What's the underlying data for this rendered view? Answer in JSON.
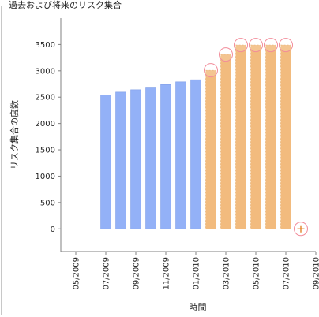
{
  "panel": {
    "title": "過去および将来のリスク集合"
  },
  "colors": {
    "past_bar": "#93b1f7",
    "future_bar": "#f2bb7e",
    "circle": "#f28c9a",
    "axis": "#808080",
    "plus": "#e07a18"
  },
  "chart_data": {
    "type": "bar",
    "title": "",
    "xlabel": "時間",
    "ylabel": "リスク集合の度数",
    "ylim": [
      -430,
      4000
    ],
    "yticks": [
      0,
      500,
      1000,
      1500,
      2000,
      2500,
      3000,
      3500
    ],
    "xlim": [
      "2009-04",
      "2010-09"
    ],
    "xticks": [
      "05/2009",
      "07/2009",
      "09/2009",
      "11/2009",
      "01/2010",
      "03/2010",
      "05/2010",
      "07/2010",
      "09/2010"
    ],
    "series": [
      {
        "kind": "past",
        "months": [
          "2009-07",
          "2009-08",
          "2009-09",
          "2009-10",
          "2009-11",
          "2009-12",
          "2010-01"
        ],
        "values": [
          2540,
          2595,
          2640,
          2690,
          2740,
          2790,
          2830
        ]
      },
      {
        "kind": "future",
        "months": [
          "2010-02",
          "2010-03",
          "2010-04",
          "2010-05",
          "2010-06",
          "2010-07"
        ],
        "values": [
          3010,
          3310,
          3490,
          3490,
          3490,
          3490
        ]
      }
    ],
    "markers": {
      "circled_months": [
        "2010-02",
        "2010-03",
        "2010-04",
        "2010-05",
        "2010-06",
        "2010-07"
      ],
      "plus_point": {
        "month": "2010-08",
        "value": 0
      }
    },
    "grid": false,
    "legend": "none"
  }
}
